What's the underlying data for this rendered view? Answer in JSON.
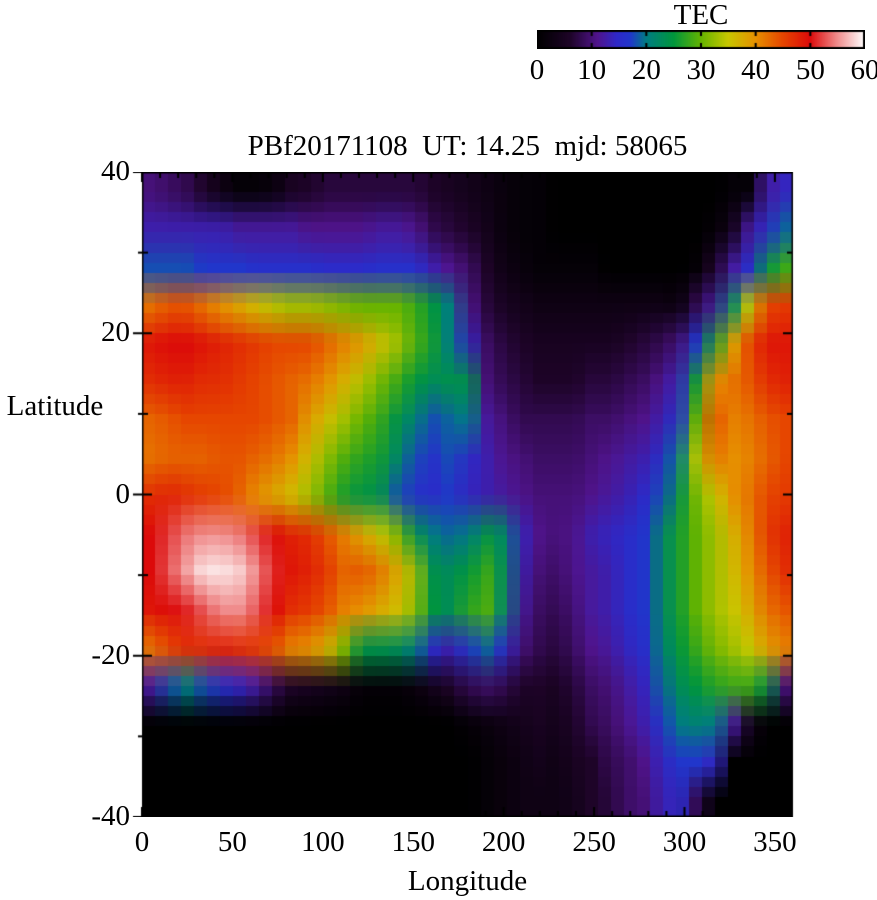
{
  "chart_data": {
    "type": "heatmap",
    "title": "PBf20171108  UT: 14.25  mjd: 58065",
    "xlabel": "Longitude",
    "ylabel": "Latitude",
    "xlim": [
      0,
      360
    ],
    "ylim": [
      -40,
      40
    ],
    "x_tick_values": [
      0,
      50,
      100,
      150,
      200,
      250,
      300,
      350
    ],
    "x_tick_labels": [
      "0",
      "50",
      "100",
      "150",
      "200",
      "250",
      "300",
      "350"
    ],
    "x_minor_tick_step": 10,
    "y_tick_values": [
      40,
      20,
      0,
      -20,
      -40
    ],
    "y_tick_labels": [
      "40",
      "20",
      "0",
      "-20",
      "-40"
    ],
    "y_minor_tick_step": 10,
    "grid": {
      "lon_start": 0,
      "lon_end": 360,
      "lon_step": 10,
      "lat_start": 40,
      "lat_end": -40,
      "lat_step": -5,
      "native_cells_lon": 50,
      "native_cells_lat": 64
    },
    "colorbar": {
      "title": "TEC",
      "min": 0,
      "max": 60,
      "tick_values": [
        0,
        10,
        20,
        30,
        40,
        50,
        60
      ],
      "tick_labels": [
        "0",
        "10",
        "20",
        "30",
        "40",
        "50",
        "60"
      ],
      "inner_tick_values": [
        10,
        20,
        30,
        40,
        50
      ]
    },
    "colormap_stops": [
      [
        0,
        "#000000"
      ],
      [
        6,
        "#1e0428"
      ],
      [
        11,
        "#50148c"
      ],
      [
        14.5,
        "#2f28c8"
      ],
      [
        17,
        "#2136cb"
      ],
      [
        20,
        "#007d82"
      ],
      [
        25,
        "#00963c"
      ],
      [
        30,
        "#64b400"
      ],
      [
        35,
        "#c8c800"
      ],
      [
        40,
        "#e69100"
      ],
      [
        45,
        "#e64600"
      ],
      [
        50,
        "#dc0a0a"
      ],
      [
        55,
        "#f08c8c"
      ],
      [
        60,
        "#ffffff"
      ]
    ],
    "values": [
      [
        10,
        9,
        8,
        6,
        3,
        1,
        1,
        2,
        5,
        6,
        7,
        7,
        7,
        7,
        7,
        7,
        6,
        5,
        4,
        3,
        2,
        1,
        1,
        0,
        0,
        0,
        0,
        0,
        0,
        0,
        0,
        0,
        0,
        1,
        1,
        12,
        14
      ],
      [
        13,
        13,
        13,
        13,
        13,
        12,
        12,
        12,
        12,
        11,
        11,
        11,
        11,
        12,
        12,
        11,
        8,
        7,
        6,
        4,
        2,
        1,
        1,
        0,
        0,
        0,
        0,
        0,
        0,
        0,
        0,
        0,
        1,
        4,
        12,
        15,
        19
      ],
      [
        18,
        18,
        18,
        17,
        17,
        17,
        16,
        16,
        16,
        16,
        15,
        15,
        15,
        16,
        16,
        16,
        13,
        11,
        9,
        6,
        3,
        2,
        1,
        1,
        1,
        1,
        0,
        0,
        0,
        0,
        0,
        1,
        6,
        12,
        16,
        24,
        28
      ],
      [
        42,
        44,
        44,
        42,
        40,
        38,
        36,
        34,
        33,
        33,
        32,
        31,
        30,
        30,
        30,
        28,
        25,
        20,
        11,
        7,
        5,
        4,
        3,
        3,
        3,
        3,
        3,
        3,
        3,
        3,
        2,
        8,
        12,
        22,
        35,
        45,
        46
      ],
      [
        49,
        50,
        50,
        49,
        48,
        47,
        46,
        45,
        45,
        45,
        43,
        41,
        39,
        36,
        33,
        29,
        26,
        20,
        14,
        9,
        7,
        6,
        5,
        5,
        5,
        5,
        5,
        6,
        7,
        8,
        10,
        17,
        26,
        38,
        45,
        49,
        49
      ],
      [
        47,
        48,
        48,
        47,
        47,
        46,
        45,
        44,
        43,
        42,
        40,
        37,
        34,
        31,
        28,
        25,
        23,
        24,
        24,
        10,
        8,
        7,
        6,
        6,
        6,
        7,
        7,
        8,
        9,
        11,
        14,
        26,
        40,
        42,
        44,
        47,
        48
      ],
      [
        43,
        44,
        45,
        45,
        45,
        45,
        45,
        44,
        43,
        39,
        36,
        33,
        30,
        28,
        24,
        21,
        18,
        19,
        20,
        12,
        10,
        8,
        8,
        8,
        8,
        9,
        9,
        10,
        11,
        13,
        17,
        30,
        44,
        41,
        42,
        44,
        45
      ],
      [
        42,
        43,
        43,
        43,
        44,
        44,
        43,
        42,
        40,
        36,
        32,
        29,
        27,
        26,
        22,
        18,
        16,
        18,
        15,
        13,
        11,
        10,
        9,
        9,
        9,
        10,
        11,
        12,
        13,
        16,
        20,
        34,
        42,
        40,
        41,
        43,
        45
      ],
      [
        47,
        48,
        47,
        46,
        45,
        43,
        40,
        38,
        36,
        33,
        29,
        26,
        24,
        24,
        18,
        16,
        15,
        17,
        14,
        13,
        12,
        11,
        10,
        10,
        10,
        11,
        12,
        13,
        15,
        18,
        24,
        31,
        35,
        40,
        42,
        45,
        46
      ],
      [
        50,
        52,
        54,
        55,
        55,
        54,
        52,
        50,
        48,
        47,
        44,
        41,
        38,
        35,
        31,
        24,
        20,
        19,
        20,
        24,
        22,
        14,
        11,
        10,
        11,
        13,
        14,
        15,
        17,
        22,
        26,
        30,
        33,
        37,
        41,
        46,
        48
      ],
      [
        50,
        53,
        56,
        59,
        59,
        58,
        55,
        51,
        49,
        48,
        46,
        43,
        44,
        42,
        38,
        33,
        24,
        23,
        25,
        28,
        23,
        13,
        10,
        9,
        11,
        12,
        13,
        15,
        17,
        22,
        26,
        30,
        33,
        36,
        40,
        44,
        47
      ],
      [
        49,
        50,
        51,
        53,
        55,
        55,
        53,
        50,
        47,
        46,
        44,
        41,
        40,
        38,
        36,
        32,
        25,
        23,
        27,
        29,
        22,
        12,
        9,
        8,
        10,
        12,
        13,
        15,
        17,
        22,
        26,
        30,
        33,
        35,
        38,
        42,
        44
      ],
      [
        42,
        45,
        47,
        47,
        48,
        47,
        46,
        44,
        41,
        40,
        37,
        31,
        24,
        24,
        23,
        20,
        15,
        13,
        17,
        19,
        15,
        10,
        8,
        7,
        9,
        11,
        12,
        14,
        16,
        21,
        25,
        28,
        31,
        33,
        35,
        39,
        41
      ],
      [
        12,
        18,
        20,
        18,
        16,
        14,
        12,
        8,
        6,
        5,
        4,
        3,
        1,
        1,
        1,
        2,
        4,
        6,
        8,
        9,
        8,
        6,
        6,
        5,
        7,
        9,
        10,
        12,
        14,
        19,
        23,
        25,
        27,
        28,
        28,
        24,
        10
      ],
      [
        0,
        0,
        0,
        0,
        0,
        0,
        0,
        0,
        0,
        0,
        0,
        0,
        0,
        0,
        0,
        0,
        0,
        0,
        1,
        2,
        3,
        4,
        5,
        4,
        6,
        8,
        9,
        11,
        13,
        17,
        20,
        21,
        20,
        12,
        4,
        0,
        0
      ],
      [
        0,
        0,
        0,
        0,
        0,
        0,
        0,
        0,
        0,
        0,
        0,
        0,
        0,
        0,
        0,
        0,
        0,
        0,
        0,
        1,
        2,
        3,
        4,
        3,
        5,
        6,
        8,
        9,
        11,
        14,
        17,
        17,
        14,
        0,
        0,
        0,
        0
      ],
      [
        0,
        0,
        0,
        0,
        0,
        0,
        0,
        0,
        0,
        0,
        0,
        0,
        0,
        0,
        0,
        0,
        0,
        0,
        0,
        1,
        2,
        3,
        3,
        3,
        4,
        6,
        7,
        9,
        10,
        13,
        15,
        8,
        0,
        0,
        0,
        0,
        0
      ]
    ]
  }
}
